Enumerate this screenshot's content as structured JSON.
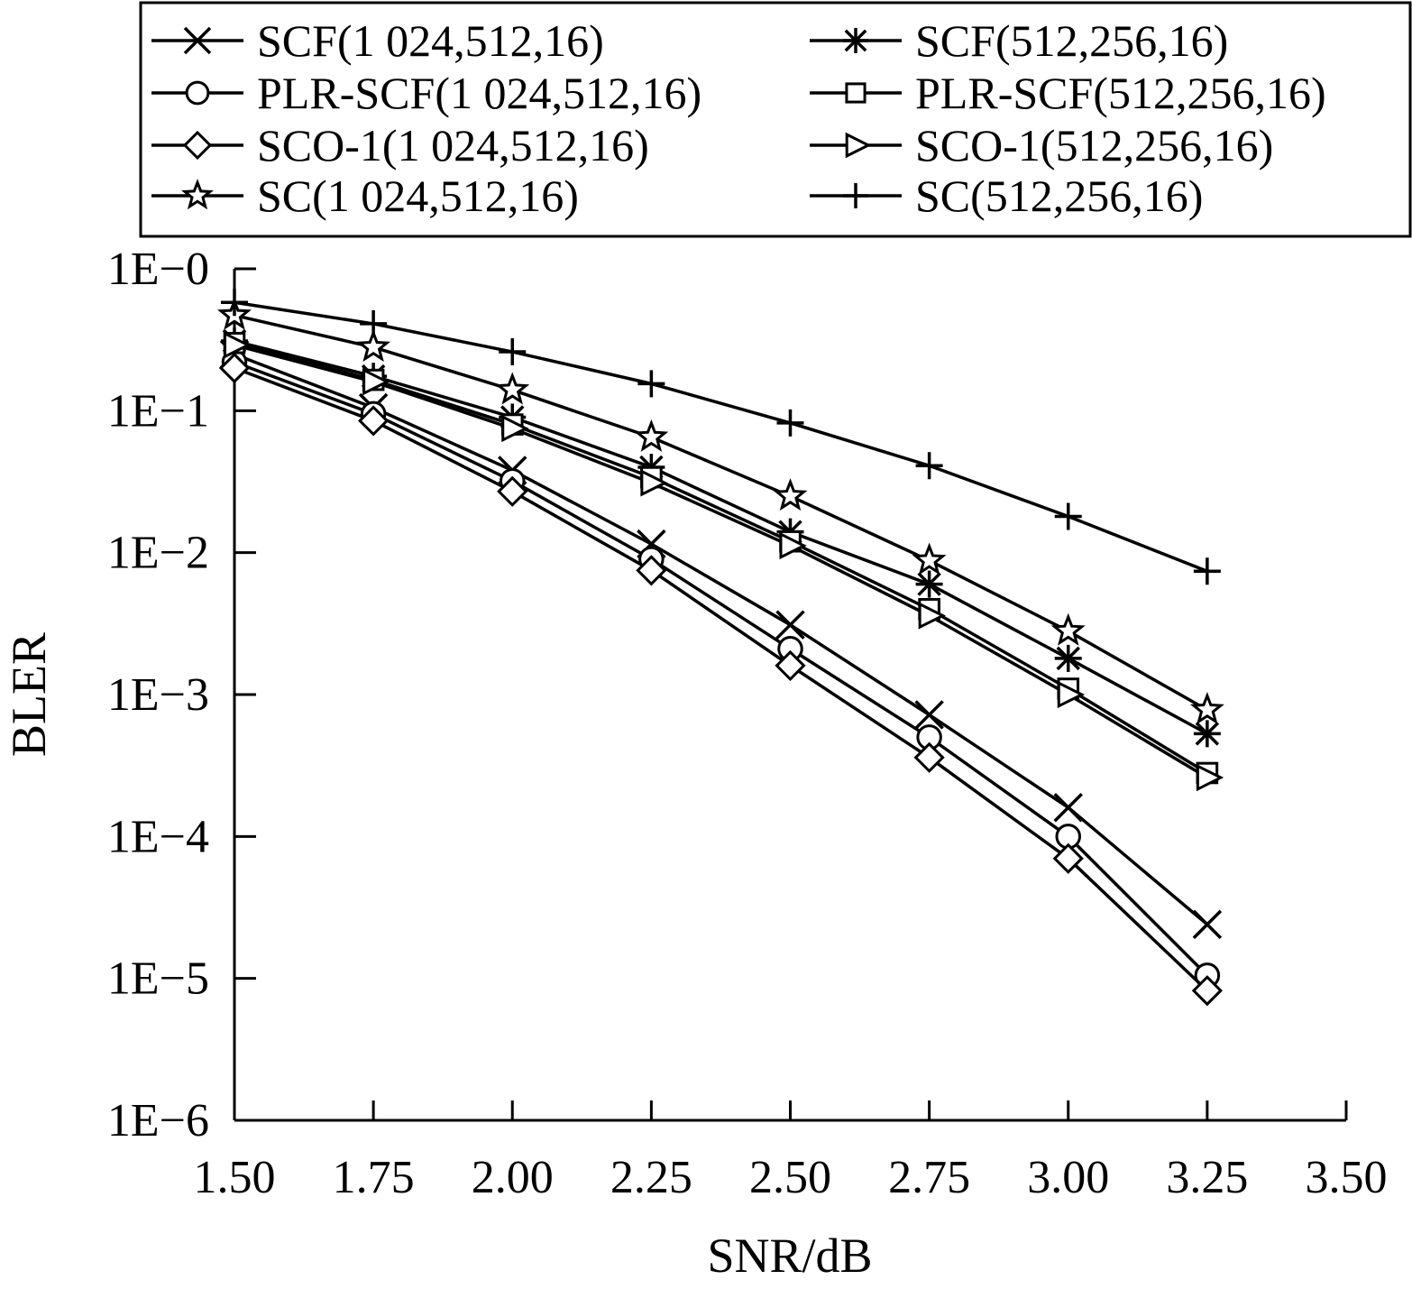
{
  "chart_data": {
    "type": "line",
    "xlabel": "SNR/dB",
    "ylabel": "BLER",
    "x_ticks": [
      "1.50",
      "1.75",
      "2.00",
      "2.25",
      "2.50",
      "2.75",
      "3.00",
      "3.25",
      "3.50"
    ],
    "y_ticks": [
      "1E−0",
      "1E−1",
      "1E−2",
      "1E−3",
      "1E−4",
      "1E−5",
      "1E−6"
    ],
    "xlim": [
      1.5,
      3.5
    ],
    "ylim": [
      1e-06,
      1
    ],
    "y_scale": "log",
    "grid": false,
    "legend_position": "top",
    "x": [
      1.5,
      1.75,
      2.0,
      2.25,
      2.5,
      2.75,
      3.0,
      3.25
    ],
    "series": [
      {
        "name": "SCF(1 024,512,16)",
        "marker": "x",
        "values": [
          0.25,
          0.105,
          0.038,
          0.0115,
          0.0031,
          0.00072,
          0.00016,
          2.4e-05
        ]
      },
      {
        "name": "SCF(512,256,16)",
        "marker": "asterisk",
        "values": [
          0.31,
          0.175,
          0.09,
          0.04,
          0.014,
          0.006,
          0.0018,
          0.00053
        ]
      },
      {
        "name": "PLR-SCF(1 024,512,16)",
        "marker": "circle",
        "values": [
          0.22,
          0.095,
          0.032,
          0.009,
          0.0021,
          0.0005,
          0.0001,
          1.05e-05
        ]
      },
      {
        "name": "PLR-SCF(512,256,16)",
        "marker": "square",
        "values": [
          0.3,
          0.165,
          0.08,
          0.034,
          0.012,
          0.004,
          0.0011,
          0.00028
        ]
      },
      {
        "name": "SCO-1(1 024,512,16)",
        "marker": "diamond",
        "values": [
          0.2,
          0.085,
          0.027,
          0.0075,
          0.0016,
          0.00036,
          7e-05,
          8.2e-06
        ]
      },
      {
        "name": "SCO-1(512,256,16)",
        "marker": "triangle-right",
        "values": [
          0.29,
          0.16,
          0.075,
          0.031,
          0.0112,
          0.0036,
          0.001,
          0.00026
        ]
      },
      {
        "name": "SC(1 024,512,16)",
        "marker": "star",
        "values": [
          0.47,
          0.28,
          0.14,
          0.065,
          0.025,
          0.0088,
          0.0028,
          0.00078
        ]
      },
      {
        "name": "SC(512,256,16)",
        "marker": "plus",
        "values": [
          0.58,
          0.41,
          0.26,
          0.155,
          0.082,
          0.041,
          0.018,
          0.0074
        ]
      }
    ]
  }
}
